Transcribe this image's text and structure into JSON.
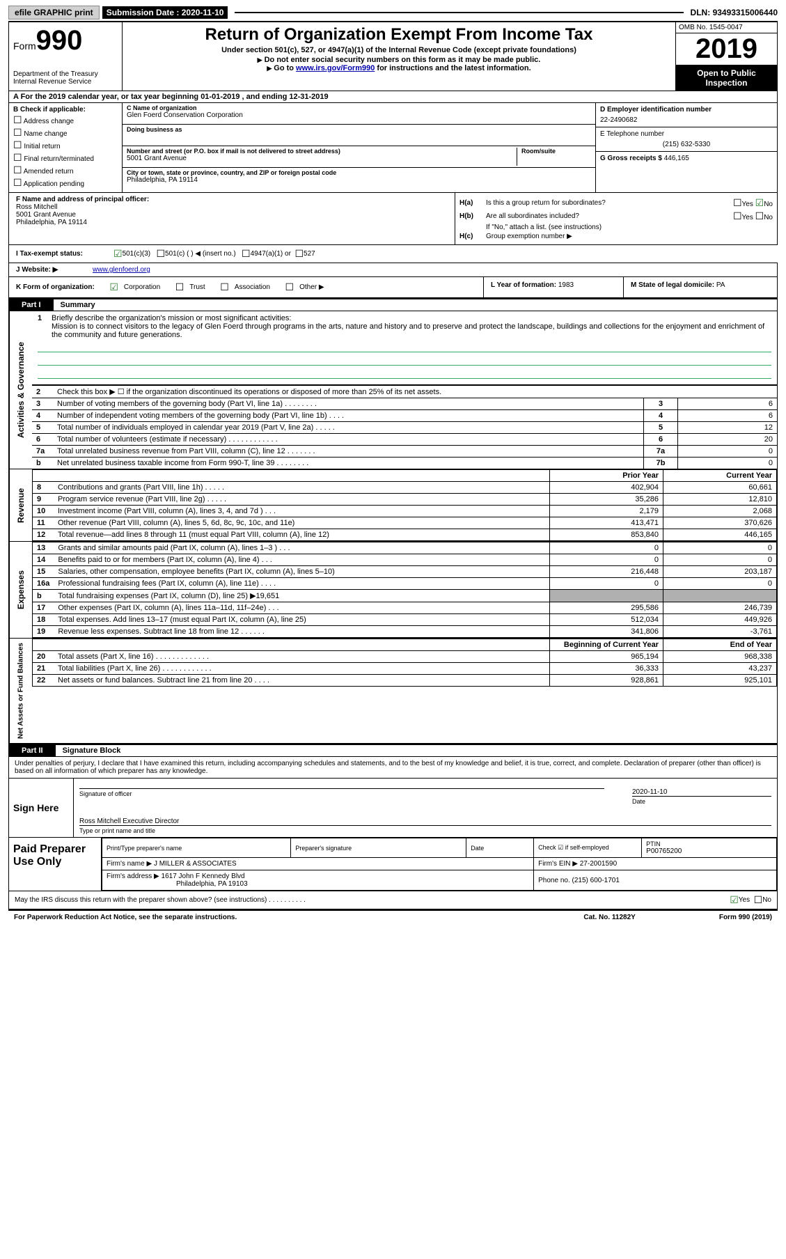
{
  "top_bar": {
    "efile_label": "efile GRAPHIC print",
    "submission_date_label": "Submission Date :",
    "submission_date": "2020-11-10",
    "dln_label": "DLN:",
    "dln": "93493315006440"
  },
  "header": {
    "form_label": "Form",
    "form_number": "990",
    "dept": "Department of the Treasury\nInternal Revenue Service",
    "title": "Return of Organization Exempt From Income Tax",
    "subtitle": "Under section 501(c), 527, or 4947(a)(1) of the Internal Revenue Code (except private foundations)",
    "instr1": "Do not enter social security numbers on this form as it may be made public.",
    "instr2_pre": "Go to ",
    "instr2_link": "www.irs.gov/Form990",
    "instr2_post": " for instructions and the latest information.",
    "omb": "OMB No. 1545-0047",
    "year": "2019",
    "open_public": "Open to Public Inspection"
  },
  "row_a": {
    "text": "A For the 2019 calendar year, or tax year beginning 01-01-2019   , and ending 12-31-2019"
  },
  "col_b": {
    "title": "B Check if applicable:",
    "opts": [
      "Address change",
      "Name change",
      "Initial return",
      "Final return/terminated",
      "Amended return",
      "Application pending"
    ]
  },
  "col_c": {
    "name_lbl": "C Name of organization",
    "name": "Glen Foerd Conservation Corporation",
    "dba_lbl": "Doing business as",
    "dba": "",
    "addr_lbl": "Number and street (or P.O. box if mail is not delivered to street address)",
    "room_lbl": "Room/suite",
    "addr": "5001 Grant Avenue",
    "city_lbl": "City or town, state or province, country, and ZIP or foreign postal code",
    "city": "Philadelphia, PA  19114"
  },
  "col_d": {
    "ein_lbl": "D Employer identification number",
    "ein": "22-2490682",
    "tel_lbl": "E Telephone number",
    "tel": "(215) 632-5330",
    "gross_lbl": "G Gross receipts $",
    "gross": "446,165"
  },
  "f": {
    "lbl": "F Name and address of principal officer:",
    "name": "Ross Mitchell",
    "addr1": "5001 Grant Avenue",
    "addr2": "Philadelphia, PA  19114"
  },
  "h": {
    "a_lbl": "H(a)",
    "a_txt": "Is this a group return for subordinates?",
    "b_lbl": "H(b)",
    "b_txt": "Are all subordinates included?",
    "b_note": "If \"No,\" attach a list. (see instructions)",
    "c_lbl": "H(c)",
    "c_txt": "Group exemption number ▶",
    "yes": "Yes",
    "no": "No"
  },
  "i": {
    "lbl": "I Tax-exempt status:",
    "o501c3": "501(c)(3)",
    "o501c": "501(c) (  ) ◀ (insert no.)",
    "o4947": "4947(a)(1) or",
    "o527": "527"
  },
  "j": {
    "lbl": "J   Website: ▶",
    "url": "www.glenfoerd.org"
  },
  "k": {
    "lbl": "K Form of organization:",
    "opts": [
      "Corporation",
      "Trust",
      "Association",
      "Other ▶"
    ],
    "l_lbl": "L Year of formation:",
    "l_val": "1983",
    "m_lbl": "M State of legal domicile:",
    "m_val": "PA"
  },
  "part1": {
    "pn": "Part I",
    "pt": "Summary"
  },
  "mission": {
    "num": "1",
    "lbl": "Briefly describe the organization's mission or most significant activities:",
    "text": "Mission is to connect visitors to the legacy of Glen Foerd through programs in the arts, nature and history and to preserve and protect the landscape, buildings and collections for the enjoyment and enrichment of the community and future generations."
  },
  "gov_rows": [
    {
      "n": "2",
      "desc": "Check this box ▶ ☐ if the organization discontinued its operations or disposed of more than 25% of its net assets.",
      "box": "",
      "val": ""
    },
    {
      "n": "3",
      "desc": "Number of voting members of the governing body (Part VI, line 1a)  .   .   .   .   .   .   .   .",
      "box": "3",
      "val": "6"
    },
    {
      "n": "4",
      "desc": "Number of independent voting members of the governing body (Part VI, line 1b)  .   .   .   .",
      "box": "4",
      "val": "6"
    },
    {
      "n": "5",
      "desc": "Total number of individuals employed in calendar year 2019 (Part V, line 2a)  .   .   .   .   .",
      "box": "5",
      "val": "12"
    },
    {
      "n": "6",
      "desc": "Total number of volunteers (estimate if necessary)   .   .   .   .   .   .   .   .   .   .   .   .",
      "box": "6",
      "val": "20"
    },
    {
      "n": "7a",
      "desc": "Total unrelated business revenue from Part VIII, column (C), line 12  .   .   .   .   .   .   .",
      "box": "7a",
      "val": "0"
    },
    {
      "n": "b",
      "desc": "Net unrelated business taxable income from Form 990-T, line 39   .   .   .   .   .   .   .   .",
      "box": "7b",
      "val": "0"
    }
  ],
  "fin_hdr": {
    "py": "Prior Year",
    "cy": "Current Year"
  },
  "revenue_rows": [
    {
      "n": "8",
      "desc": "Contributions and grants (Part VIII, line 1h)   .   .   .   .   .",
      "py": "402,904",
      "cy": "60,661"
    },
    {
      "n": "9",
      "desc": "Program service revenue (Part VIII, line 2g)   .   .   .   .   .",
      "py": "35,286",
      "cy": "12,810"
    },
    {
      "n": "10",
      "desc": "Investment income (Part VIII, column (A), lines 3, 4, and 7d )   .   .   .",
      "py": "2,179",
      "cy": "2,068"
    },
    {
      "n": "11",
      "desc": "Other revenue (Part VIII, column (A), lines 5, 6d, 8c, 9c, 10c, and 11e)",
      "py": "413,471",
      "cy": "370,626"
    },
    {
      "n": "12",
      "desc": "Total revenue—add lines 8 through 11 (must equal Part VIII, column (A), line 12)",
      "py": "853,840",
      "cy": "446,165"
    }
  ],
  "expense_rows": [
    {
      "n": "13",
      "desc": "Grants and similar amounts paid (Part IX, column (A), lines 1–3 )  .   .   .",
      "py": "0",
      "cy": "0"
    },
    {
      "n": "14",
      "desc": "Benefits paid to or for members (Part IX, column (A), line 4)  .   .   .",
      "py": "0",
      "cy": "0"
    },
    {
      "n": "15",
      "desc": "Salaries, other compensation, employee benefits (Part IX, column (A), lines 5–10)",
      "py": "216,448",
      "cy": "203,187"
    },
    {
      "n": "16a",
      "desc": "Professional fundraising fees (Part IX, column (A), line 11e)  .   .   .   .",
      "py": "0",
      "cy": "0"
    },
    {
      "n": "b",
      "desc": "Total fundraising expenses (Part IX, column (D), line 25) ▶19,651",
      "py": "grey",
      "cy": "grey"
    },
    {
      "n": "17",
      "desc": "Other expenses (Part IX, column (A), lines 11a–11d, 11f–24e)  .   .   .",
      "py": "295,586",
      "cy": "246,739"
    },
    {
      "n": "18",
      "desc": "Total expenses. Add lines 13–17 (must equal Part IX, column (A), line 25)",
      "py": "512,034",
      "cy": "449,926"
    },
    {
      "n": "19",
      "desc": "Revenue less expenses. Subtract line 18 from line 12  .   .   .   .   .   .",
      "py": "341,806",
      "cy": "-3,761"
    }
  ],
  "net_hdr": {
    "py": "Beginning of Current Year",
    "cy": "End of Year"
  },
  "net_rows": [
    {
      "n": "20",
      "desc": "Total assets (Part X, line 16)  .   .   .   .   .   .   .   .   .   .   .   .   .",
      "py": "965,194",
      "cy": "968,338"
    },
    {
      "n": "21",
      "desc": "Total liabilities (Part X, line 26)  .   .   .   .   .   .   .   .   .   .   .   .",
      "py": "36,333",
      "cy": "43,237"
    },
    {
      "n": "22",
      "desc": "Net assets or fund balances. Subtract line 21 from line 20  .   .   .   .",
      "py": "928,861",
      "cy": "925,101"
    }
  ],
  "side_labels": {
    "gov": "Activities & Governance",
    "rev": "Revenue",
    "exp": "Expenses",
    "net": "Net Assets or Fund Balances"
  },
  "part2": {
    "pn": "Part II",
    "pt": "Signature Block",
    "decl": "Under penalties of perjury, I declare that I have examined this return, including accompanying schedules and statements, and to the best of my knowledge and belief, it is true, correct, and complete. Declaration of preparer (other than officer) is based on all information of which preparer has any knowledge."
  },
  "sign": {
    "here": "Sign Here",
    "sig_lbl": "Signature of officer",
    "date_lbl": "Date",
    "date": "2020-11-10",
    "name": "Ross Mitchell  Executive Director",
    "name_lbl": "Type or print name and title"
  },
  "prep": {
    "title": "Paid Preparer Use Only",
    "r1": {
      "c1_lbl": "Print/Type preparer's name",
      "c2_lbl": "Preparer's signature",
      "c3_lbl": "Date",
      "c4_lbl": "Check ☑ if self-employed",
      "c5_lbl": "PTIN",
      "c5_val": "P00765200"
    },
    "r2": {
      "lbl": "Firm's name    ▶",
      "val": "J MILLER & ASSOCIATES",
      "ein_lbl": "Firm's EIN ▶",
      "ein": "27-2001590"
    },
    "r3": {
      "lbl": "Firm's address ▶",
      "val1": "1617 John F Kennedy Blvd",
      "val2": "Philadelphia, PA  19103",
      "ph_lbl": "Phone no.",
      "ph": "(215) 600-1701"
    }
  },
  "discuss": {
    "txt": "May the IRS discuss this return with the preparer shown above? (see instructions)   .   .   .   .   .   .   .   .   .   .",
    "yes": "Yes",
    "no": "No"
  },
  "footer": {
    "left": "For Paperwork Reduction Act Notice, see the separate instructions.",
    "mid": "Cat. No. 11282Y",
    "right": "Form 990 (2019)"
  },
  "colors": {
    "link": "#0000aa",
    "check_green": "#2a7a2a",
    "blank_line": "#3a8a5a",
    "grey_cell": "#b0b0b0",
    "black": "#000000",
    "white": "#ffffff"
  }
}
